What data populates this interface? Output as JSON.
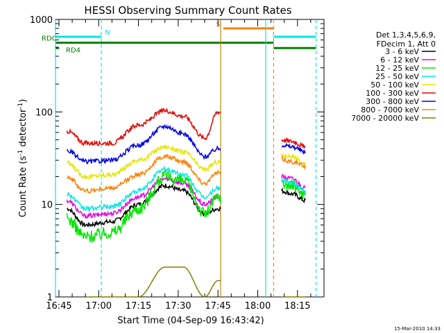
{
  "chart_data": {
    "type": "line",
    "title": "HESSI Observing Summary Count Rates",
    "xlabel": "Start Time (04-Sep-09 16:43:42)",
    "ylabel_main": "Count Rate (s",
    "ylabel_sup1": "-1",
    "ylabel_mid": " detector",
    "ylabel_sup2": "-1",
    "ylabel_end": ")",
    "ylabel": "Count Rate (s-1 detector-1)",
    "yscale": "log",
    "ylim": [
      1,
      1000
    ],
    "xlim": [
      "16:43:42",
      "18:25:00"
    ],
    "x_ticks": [
      "16:45",
      "17:00",
      "17:15",
      "17:30",
      "17:45",
      "18:00",
      "18:15"
    ],
    "y_ticks": [
      "1",
      "10",
      "100",
      "1000"
    ],
    "timestamp": "15-Mar-2010 14:33",
    "legend_header": [
      "Det 1,3,4,5,6,9,",
      "FDecim 1, Att 0"
    ],
    "legend_position": "right",
    "series": [
      {
        "name": "3 - 6 keV",
        "color": "#000000",
        "x": [
          "16:48",
          "16:55",
          "17:05",
          "17:15",
          "17:25",
          "17:32",
          "17:40",
          "17:45",
          "18:09",
          "18:13",
          "18:18"
        ],
        "values": [
          9,
          6,
          6.5,
          10,
          16,
          14,
          8,
          9,
          14,
          13,
          11
        ]
      },
      {
        "name": "6 - 12 keV",
        "color": "#e600e6",
        "x": [
          "16:48",
          "16:55",
          "17:05",
          "17:15",
          "17:25",
          "17:32",
          "17:40",
          "17:45",
          "18:09",
          "18:13",
          "18:18"
        ],
        "values": [
          11,
          7.5,
          8,
          12,
          19,
          17,
          10,
          12,
          20,
          19,
          15
        ]
      },
      {
        "name": "12 - 25 keV",
        "color": "#00e600",
        "x": [
          "16:48",
          "16:55",
          "17:05",
          "17:15",
          "17:25",
          "17:32",
          "17:40",
          "17:45",
          "18:09",
          "18:13",
          "18:18"
        ],
        "values": [
          7,
          4.5,
          5,
          9,
          20,
          18,
          8,
          12,
          17,
          16,
          13
        ]
      },
      {
        "name": "25 - 50 keV",
        "color": "#00e6e6",
        "x": [
          "16:48",
          "16:55",
          "17:05",
          "17:15",
          "17:25",
          "17:32",
          "17:40",
          "17:45",
          "18:09",
          "18:13",
          "18:18"
        ],
        "values": [
          13,
          9,
          9.5,
          14,
          24,
          21,
          12,
          15,
          18,
          17,
          14
        ]
      },
      {
        "name": "50 - 100 keV",
        "color": "#e6e600",
        "x": [
          "16:48",
          "16:55",
          "17:05",
          "17:15",
          "17:25",
          "17:32",
          "17:40",
          "17:45",
          "18:09",
          "18:13",
          "18:18"
        ],
        "values": [
          28,
          20,
          21,
          30,
          42,
          37,
          24,
          29,
          34,
          33,
          27
        ]
      },
      {
        "name": "100 - 300 keV",
        "color": "#e60000",
        "x": [
          "16:48",
          "16:55",
          "17:05",
          "17:15",
          "17:25",
          "17:32",
          "17:40",
          "17:45",
          "18:09",
          "18:13",
          "18:18"
        ],
        "values": [
          62,
          46,
          46,
          72,
          103,
          90,
          52,
          100,
          50,
          48,
          42
        ]
      },
      {
        "name": "300 - 800 keV",
        "color": "#0000e6",
        "x": [
          "16:48",
          "16:55",
          "17:05",
          "17:15",
          "17:25",
          "17:32",
          "17:40",
          "17:45",
          "18:09",
          "18:13",
          "18:18"
        ],
        "values": [
          38,
          29,
          30,
          44,
          70,
          58,
          33,
          40,
          44,
          42,
          37
        ]
      },
      {
        "name": "800 - 7000 keV",
        "color": "#ff8000",
        "x": [
          "16:48",
          "16:55",
          "17:05",
          "17:15",
          "17:25",
          "17:32",
          "17:40",
          "17:45",
          "18:09",
          "18:13",
          "18:18"
        ],
        "values": [
          20,
          14,
          15,
          21,
          33,
          29,
          17,
          22,
          31,
          29,
          26
        ]
      },
      {
        "name": "7000 - 20000 keV",
        "color": "#808000",
        "x": [
          "16:55",
          "17:05",
          "17:15",
          "17:25",
          "17:32",
          "17:40",
          "17:45",
          "18:09",
          "18:13",
          "18:18"
        ],
        "values": [
          1,
          1,
          1,
          2.1,
          2.1,
          1,
          1.5,
          1,
          1,
          1
        ]
      }
    ],
    "flags": [
      {
        "label": "N",
        "color": "#00e6e6",
        "x_start": "16:43:42",
        "x_end": "17:01",
        "level": 650
      },
      {
        "label": "S",
        "color": "#ff8000",
        "x_start": "17:47",
        "x_end": "18:06",
        "level": 800
      },
      {
        "label": "RDC",
        "color": "#008000",
        "x_start": "16:43:42",
        "x_end": "18:06",
        "level": 560
      },
      {
        "label": "RD4",
        "color": "#008000",
        "x_start": "16:43:42",
        "x_end": "16:45",
        "level": 490
      },
      {
        "label": "",
        "color": "#00e6e6",
        "x_start": "18:06",
        "x_end": "18:22",
        "level": 650
      },
      {
        "label": "",
        "color": "#008000",
        "x_start": "18:06",
        "x_end": "18:22",
        "level": 490
      }
    ],
    "vertical_markers": [
      {
        "x": "16:43:42",
        "color": "#00e6e6",
        "style": "solid"
      },
      {
        "x": "17:01",
        "color": "#00e6e6",
        "style": "dashed"
      },
      {
        "x": "17:46",
        "color": "#b8860b",
        "style": "solid"
      },
      {
        "x": "18:03",
        "color": "#00e6e6",
        "style": "solid"
      },
      {
        "x": "18:06",
        "color": "#ff8000",
        "style": "dashed"
      },
      {
        "x": "18:22",
        "color": "#00e6e6",
        "style": "dashed"
      }
    ],
    "gaps": [
      [
        "17:46",
        "18:09"
      ]
    ]
  }
}
